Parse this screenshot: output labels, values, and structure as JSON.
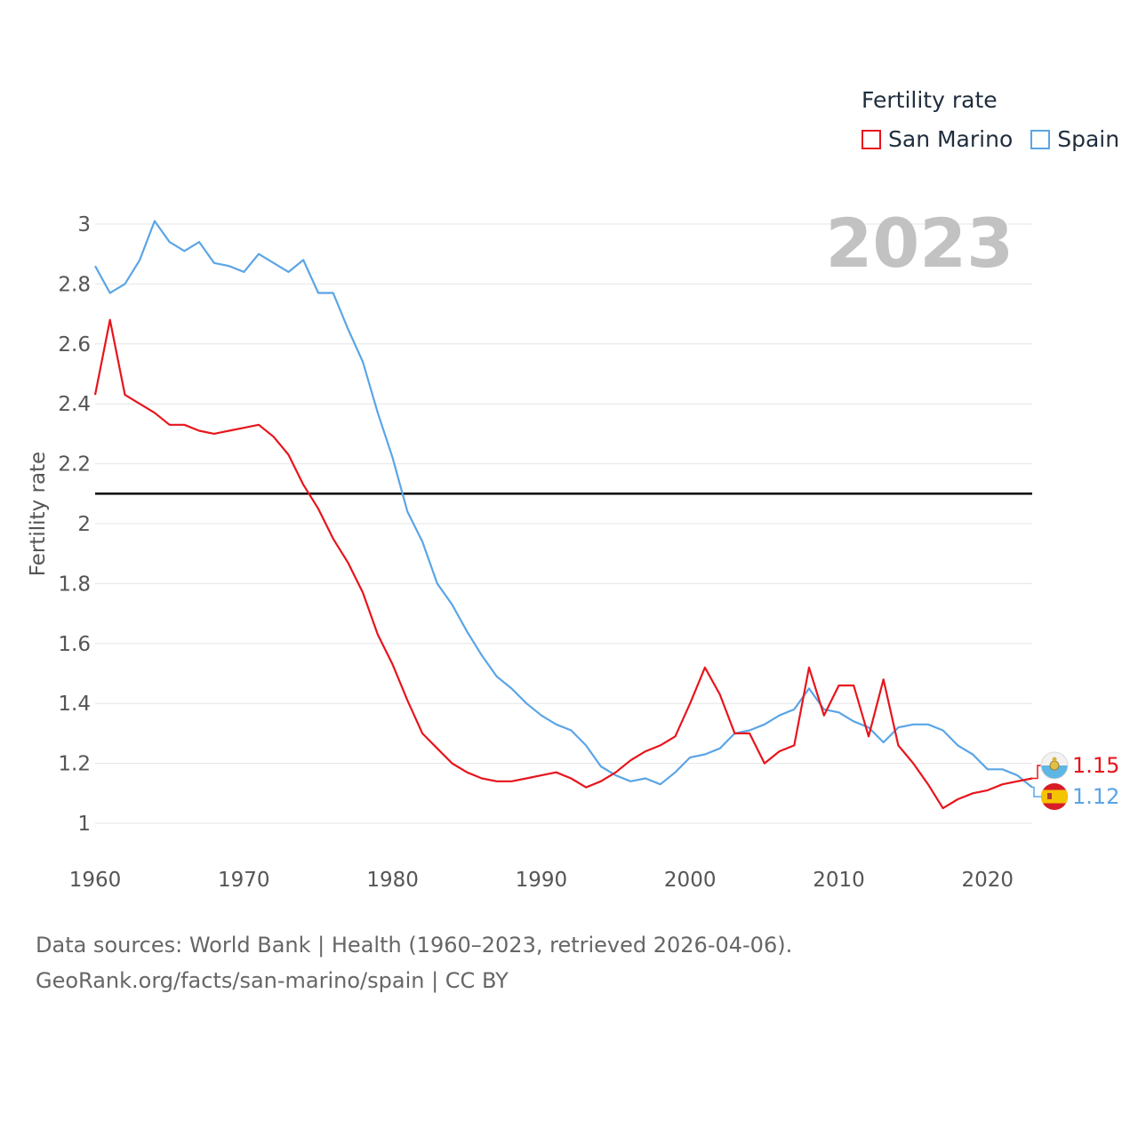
{
  "legend": {
    "title": "Fertility rate",
    "items": [
      {
        "label": "San Marino",
        "color": "#e8141c"
      },
      {
        "label": "Spain",
        "color": "#5aa5e6"
      }
    ]
  },
  "sources": {
    "line1": "Data sources: World Bank | Health (1960–2023, retrieved 2026-04-06).",
    "line2": "GeoRank.org/facts/san-marino/spain | CC BY"
  },
  "chart_data": {
    "type": "line",
    "title": "Fertility rate",
    "year_label": "2023",
    "xlabel": "",
    "ylabel": "Fertility rate",
    "xlim": [
      1960,
      2023
    ],
    "ylim": [
      1,
      3
    ],
    "x_ticks": [
      "1960",
      "1970",
      "1980",
      "1990",
      "2000",
      "2010",
      "2020"
    ],
    "y_ticks": [
      "1",
      "1.2",
      "1.4",
      "1.6",
      "1.8",
      "2",
      "2.2",
      "2.4",
      "2.6",
      "2.8",
      "3"
    ],
    "reference_line": 2.1,
    "grid": true,
    "x": [
      1960,
      1961,
      1962,
      1963,
      1964,
      1965,
      1966,
      1967,
      1968,
      1969,
      1970,
      1971,
      1972,
      1973,
      1974,
      1975,
      1976,
      1977,
      1978,
      1979,
      1980,
      1981,
      1982,
      1983,
      1984,
      1985,
      1986,
      1987,
      1988,
      1989,
      1990,
      1991,
      1992,
      1993,
      1994,
      1995,
      1996,
      1997,
      1998,
      1999,
      2000,
      2001,
      2002,
      2003,
      2004,
      2005,
      2006,
      2007,
      2008,
      2009,
      2010,
      2011,
      2012,
      2013,
      2014,
      2015,
      2016,
      2017,
      2018,
      2019,
      2020,
      2021,
      2022,
      2023
    ],
    "series": [
      {
        "name": "Spain",
        "color": "#5aa5e6",
        "end_label": "1.12",
        "values": [
          2.86,
          2.77,
          2.8,
          2.88,
          3.01,
          2.94,
          2.91,
          2.94,
          2.87,
          2.86,
          2.84,
          2.9,
          2.87,
          2.84,
          2.88,
          2.77,
          2.77,
          2.65,
          2.54,
          2.37,
          2.22,
          2.04,
          1.94,
          1.8,
          1.73,
          1.64,
          1.56,
          1.49,
          1.45,
          1.4,
          1.36,
          1.33,
          1.31,
          1.26,
          1.19,
          1.16,
          1.14,
          1.15,
          1.13,
          1.17,
          1.22,
          1.23,
          1.25,
          1.3,
          1.31,
          1.33,
          1.36,
          1.38,
          1.45,
          1.38,
          1.37,
          1.34,
          1.32,
          1.27,
          1.32,
          1.33,
          1.33,
          1.31,
          1.26,
          1.23,
          1.18,
          1.18,
          1.16,
          1.12
        ]
      },
      {
        "name": "San Marino",
        "color": "#e8141c",
        "end_label": "1.15",
        "values": [
          2.43,
          2.68,
          2.43,
          2.4,
          2.37,
          2.33,
          2.33,
          2.31,
          2.3,
          2.31,
          2.32,
          2.33,
          2.29,
          2.23,
          2.13,
          2.05,
          1.95,
          1.87,
          1.77,
          1.63,
          1.53,
          1.41,
          1.3,
          1.25,
          1.2,
          1.17,
          1.15,
          1.14,
          1.14,
          1.15,
          1.16,
          1.17,
          1.15,
          1.12,
          1.14,
          1.17,
          1.21,
          1.24,
          1.26,
          1.29,
          1.4,
          1.52,
          1.43,
          1.3,
          1.3,
          1.2,
          1.24,
          1.26,
          1.52,
          1.36,
          1.46,
          1.46,
          1.29,
          1.48,
          1.26,
          1.2,
          1.13,
          1.05,
          1.08,
          1.1,
          1.11,
          1.13,
          1.14,
          1.15
        ]
      }
    ]
  }
}
